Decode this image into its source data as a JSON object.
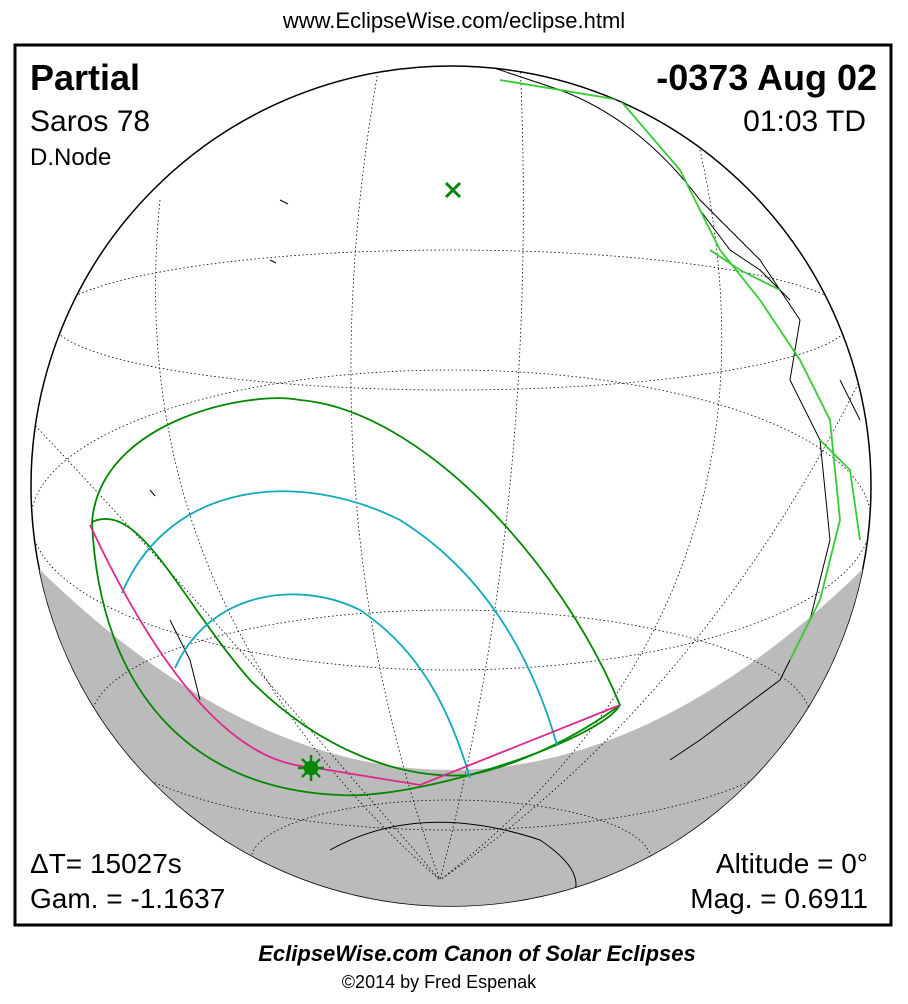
{
  "header": {
    "url": "www.EclipseWise.com/eclipse.html"
  },
  "map": {
    "eclipse_type": "Partial",
    "date": "-0373 Aug 02",
    "saros": "Saros  78",
    "time": "01:03 TD",
    "node": "D.Node",
    "delta_t": "ΔT=  15027s",
    "gamma": "Gam. = -1.1637",
    "altitude": "Altitude =  0°",
    "magnitude": "Mag. = 0.6911"
  },
  "footer": {
    "title": "EclipseWise.com Canon of Solar Eclipses",
    "copyright": "©2014 by Fred Espenak"
  }
}
